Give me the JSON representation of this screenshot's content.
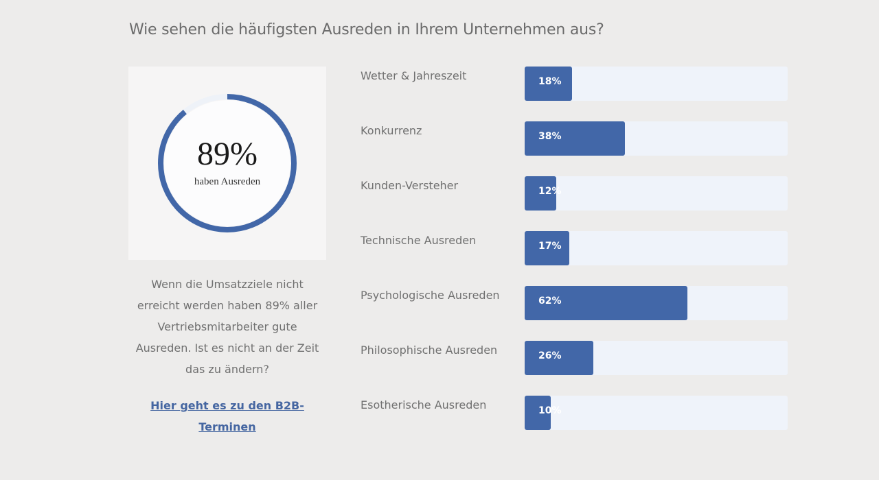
{
  "heading": "Wie sehen die häufigsten Ausreden in Ihrem Unternehmen aus?",
  "gauge": {
    "value_label": "89%",
    "value": 89,
    "caption": "haben Ausreden",
    "color": "#4267a8"
  },
  "description": "Wenn die Umsatzziele nicht erreicht werden haben 89% aller Vertriebsmitarbeiter gute Ausreden. Ist es nicht an der Zeit das zu ändern?",
  "cta": {
    "label": "Hier geht es zu den B2B-Terminen"
  },
  "bars": [
    {
      "label": "Wetter & Jahreszeit",
      "value_label": "18%",
      "value": 18
    },
    {
      "label": "Konkurrenz",
      "value_label": "38%",
      "value": 38
    },
    {
      "label": "Kunden-Versteher",
      "value_label": "12%",
      "value": 12
    },
    {
      "label": "Technische Ausreden",
      "value_label": "17%",
      "value": 17
    },
    {
      "label": "Psychologische Ausreden",
      "value_label": "62%",
      "value": 62
    },
    {
      "label": "Philosophische Ausreden",
      "value_label": "26%",
      "value": 26
    },
    {
      "label": "Esotherische Ausreden",
      "value_label": "10%",
      "value": 10
    }
  ],
  "colors": {
    "accent": "#4267a8",
    "track": "#eff3fa",
    "background": "#edeceb"
  }
}
